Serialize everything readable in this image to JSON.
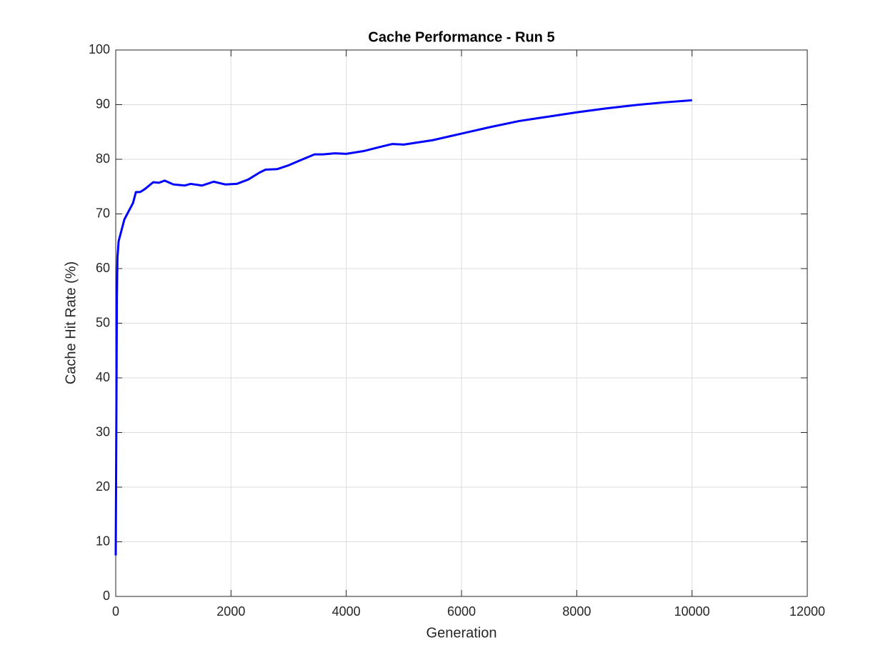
{
  "chart_data": {
    "type": "line",
    "title": "Cache Performance - Run 5",
    "x_label": "Generation",
    "y_label": "Cache Hit Rate (%)",
    "x": [
      0,
      10,
      20,
      30,
      50,
      100,
      150,
      200,
      250,
      300,
      350,
      420,
      500,
      650,
      750,
      850,
      1000,
      1100,
      1200,
      1300,
      1500,
      1700,
      1900,
      2100,
      2300,
      2500,
      2600,
      2800,
      3000,
      3200,
      3450,
      3600,
      3800,
      4000,
      4300,
      4600,
      4800,
      5000,
      5500,
      6000,
      6500,
      7000,
      7500,
      8000,
      8500,
      9000,
      9500,
      10000
    ],
    "series": [
      {
        "name": "Cache Hit Rate",
        "color": "#0000ff",
        "values": [
          7.5,
          30,
          55,
          62,
          65,
          67,
          69,
          70,
          71,
          72,
          74,
          74,
          74.5,
          75.8,
          75.7,
          76.1,
          75.4,
          75.3,
          75.2,
          75.5,
          75.2,
          75.9,
          75.4,
          75.5,
          76.3,
          77.6,
          78.1,
          78.2,
          78.9,
          79.8,
          80.9,
          80.9,
          81.1,
          81.0,
          81.5,
          82.3,
          82.8,
          82.7,
          83.5,
          84.7,
          85.9,
          87,
          87.8,
          88.6,
          89.3,
          89.9,
          90.4,
          90.8
        ]
      }
    ],
    "xlim": [
      0,
      12000
    ],
    "xticks": [
      0,
      2000,
      4000,
      6000,
      8000,
      10000,
      12000
    ],
    "ylim": [
      0,
      100
    ],
    "yticks": [
      0,
      10,
      20,
      30,
      40,
      50,
      60,
      70,
      80,
      90,
      100
    ],
    "grid": true
  }
}
